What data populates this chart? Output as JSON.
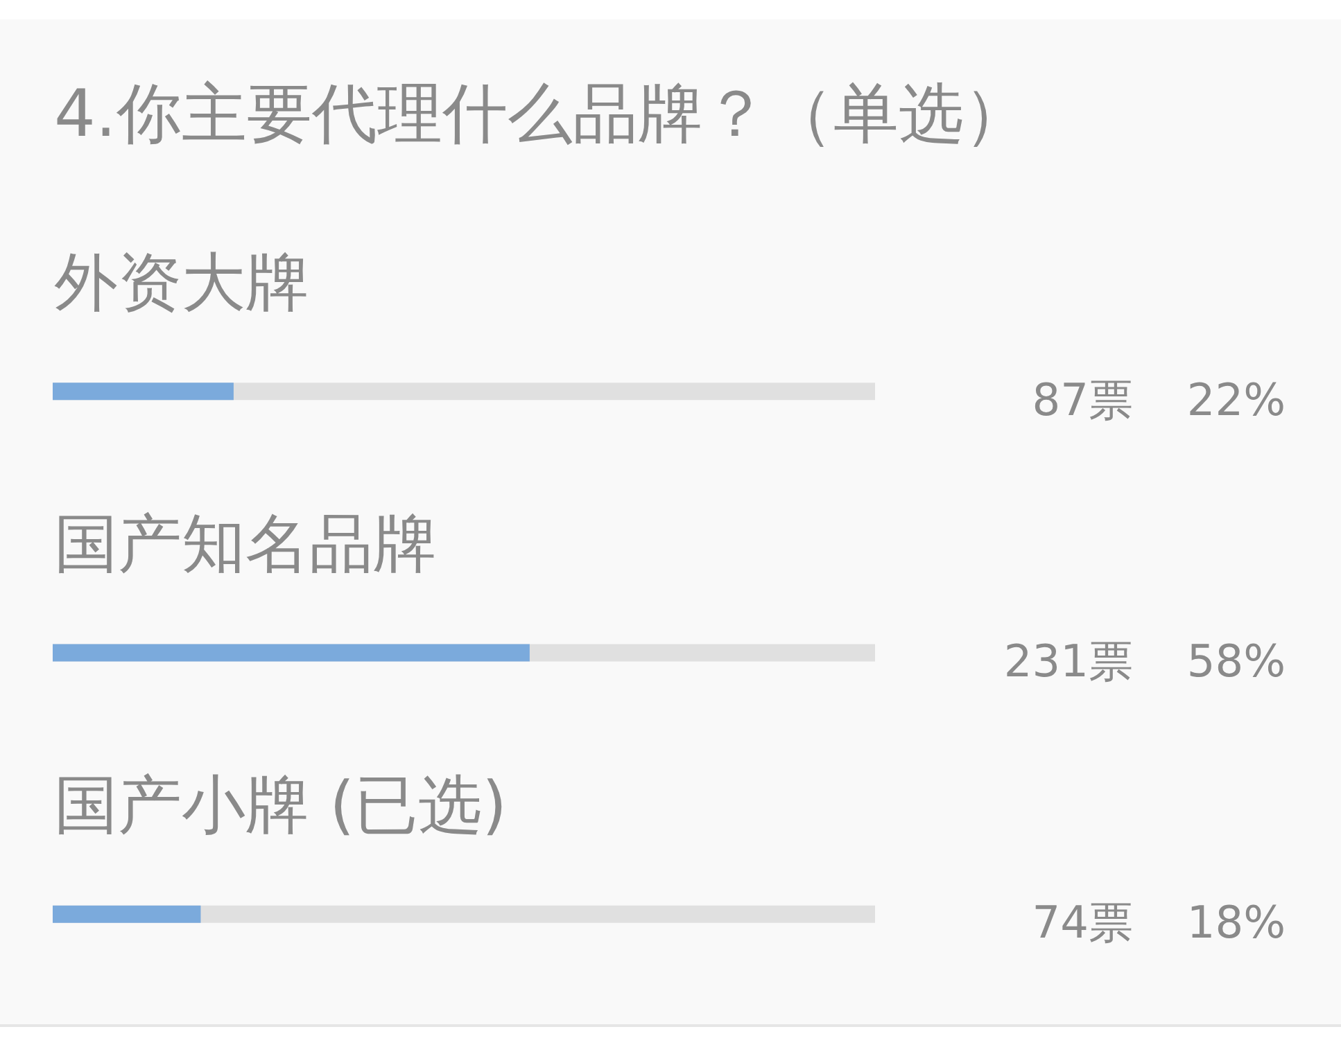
{
  "chart_data": {
    "type": "bar",
    "title": "4.你主要代理什么品牌？（单选）",
    "orientation": "horizontal",
    "categories": [
      "外资大牌",
      "国产知名品牌",
      "国产小牌 (已选)"
    ],
    "values": [
      22,
      58,
      18
    ],
    "value_labels": [
      "22%",
      "58%",
      "18%"
    ],
    "color": "#7baadc",
    "xlim": [
      0,
      100
    ],
    "tick_labels": "y",
    "grid": false,
    "annotations": [
      "87票",
      "231票",
      "74票"
    ]
  }
}
